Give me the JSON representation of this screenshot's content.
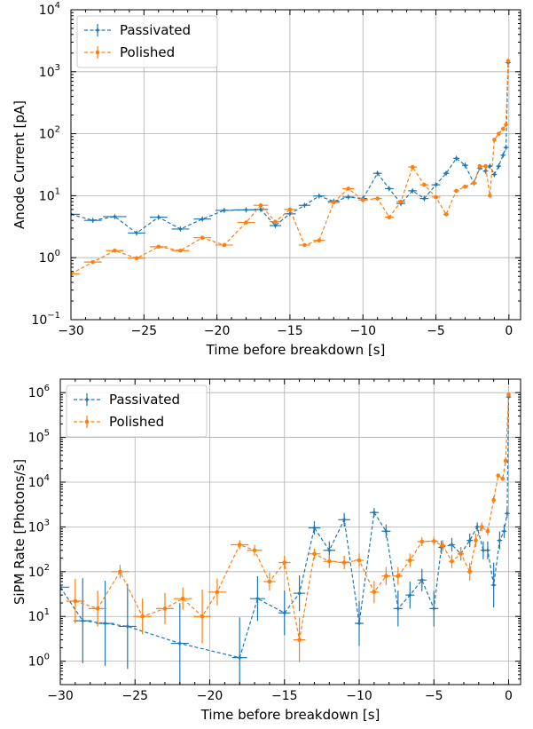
{
  "colors": {
    "passivated": "#1f77b4",
    "polished": "#ff7f0e",
    "grid": "#b0b0b0"
  },
  "chart_data": [
    {
      "type": "line",
      "xlabel": "Time before breakdown [s]",
      "ylabel": "Anode Current [pA]",
      "xlim": [
        -30,
        0.8
      ],
      "yscale": "log",
      "ylim": [
        0.1,
        10000
      ],
      "grid": true,
      "legend_position": "top-left",
      "x_ticks": [
        -30,
        -25,
        -20,
        -15,
        -10,
        -5,
        0
      ],
      "x_tick_labels": [
        "−30",
        "−25",
        "−20",
        "−15",
        "−10",
        "−5",
        "0"
      ],
      "y_ticks": [
        0.1,
        1,
        10,
        100,
        1000,
        10000
      ],
      "y_tick_labels": [
        [
          "10",
          "−1"
        ],
        [
          "10",
          "0"
        ],
        [
          "10",
          "1"
        ],
        [
          "10",
          "2"
        ],
        [
          "10",
          "3"
        ],
        [
          "10",
          "4"
        ]
      ],
      "series": [
        {
          "name": "Passivated",
          "color": "#1f77b4",
          "marker": "star",
          "points": [
            [
              -30,
              5.0,
              0.6,
              0
            ],
            [
              -28.5,
              4.0,
              0.6,
              0
            ],
            [
              -27,
              4.6,
              0.8,
              0
            ],
            [
              -25.5,
              2.5,
              0.6,
              0
            ],
            [
              -24,
              4.5,
              0.6,
              0
            ],
            [
              -22.5,
              2.9,
              0.6,
              0
            ],
            [
              -21,
              4.2,
              0.6,
              0
            ],
            [
              -19.5,
              5.8,
              0.6,
              0
            ],
            [
              -18,
              5.9,
              0.8,
              0
            ],
            [
              -17,
              6.0,
              0.5,
              0
            ],
            [
              -16,
              3.3,
              0.4,
              0
            ],
            [
              -15,
              5.1,
              0.4,
              0
            ],
            [
              -14,
              7.0,
              0.4,
              0
            ],
            [
              -13,
              9.9,
              0.4,
              0
            ],
            [
              -12,
              8.1,
              0.4,
              0
            ],
            [
              -11,
              9.5,
              0.4,
              0
            ],
            [
              -10,
              9.0,
              0.3,
              0
            ],
            [
              -9,
              23.0,
              0.3,
              0
            ],
            [
              -8.2,
              13.0,
              0.3,
              0
            ],
            [
              -7.4,
              7.5,
              0.3,
              0
            ],
            [
              -6.6,
              12.0,
              0.3,
              0
            ],
            [
              -5.8,
              9.0,
              0.3,
              0
            ],
            [
              -5.0,
              15.0,
              0.3,
              0
            ],
            [
              -4.3,
              23.0,
              0.2,
              0
            ],
            [
              -3.6,
              40.0,
              0.2,
              0
            ],
            [
              -3.0,
              31.0,
              0.2,
              0
            ],
            [
              -2.4,
              16.0,
              0.2,
              0
            ],
            [
              -2.0,
              28.0,
              0.1,
              0
            ],
            [
              -1.6,
              25.0,
              0.1,
              0
            ],
            [
              -1.3,
              30.0,
              0.1,
              0
            ],
            [
              -1.0,
              22.0,
              0.1,
              0
            ],
            [
              -0.7,
              30.0,
              0.1,
              0
            ],
            [
              -0.4,
              45.0,
              0.05,
              0
            ],
            [
              -0.2,
              60.0,
              0.05,
              0
            ],
            [
              -0.05,
              1400.0,
              0.03,
              0
            ]
          ]
        },
        {
          "name": "Polished",
          "color": "#ff7f0e",
          "marker": "circle",
          "points": [
            [
              -30,
              0.55,
              0.6,
              0
            ],
            [
              -28.5,
              0.85,
              0.6,
              0
            ],
            [
              -27,
              1.3,
              0.6,
              0
            ],
            [
              -25.5,
              0.98,
              0.6,
              0
            ],
            [
              -24,
              1.5,
              0.6,
              0
            ],
            [
              -22.5,
              1.3,
              0.6,
              0
            ],
            [
              -21,
              2.1,
              0.6,
              0
            ],
            [
              -19.5,
              1.6,
              0.6,
              0
            ],
            [
              -18,
              3.7,
              0.6,
              0
            ],
            [
              -17,
              7.0,
              0.5,
              0
            ],
            [
              -16,
              3.8,
              0.4,
              0
            ],
            [
              -15,
              6.0,
              0.4,
              0
            ],
            [
              -14,
              1.6,
              0.4,
              0
            ],
            [
              -13,
              1.9,
              0.4,
              0
            ],
            [
              -12,
              7.8,
              0.4,
              0
            ],
            [
              -11,
              13.0,
              0.4,
              0
            ],
            [
              -10,
              8.5,
              0.3,
              0
            ],
            [
              -9,
              9.0,
              0.3,
              0
            ],
            [
              -8.2,
              4.5,
              0.3,
              0
            ],
            [
              -7.4,
              8.0,
              0.3,
              0
            ],
            [
              -6.6,
              29.0,
              0.3,
              0
            ],
            [
              -5.8,
              15.0,
              0.3,
              0
            ],
            [
              -5.0,
              9.5,
              0.3,
              0
            ],
            [
              -4.3,
              5.0,
              0.2,
              0
            ],
            [
              -3.6,
              12.0,
              0.2,
              0
            ],
            [
              -3.0,
              14.0,
              0.2,
              0
            ],
            [
              -2.4,
              16.0,
              0.2,
              0
            ],
            [
              -2.0,
              30.0,
              0.1,
              0
            ],
            [
              -1.6,
              30.0,
              0.1,
              0
            ],
            [
              -1.3,
              10.0,
              0.1,
              0
            ],
            [
              -1.0,
              80.0,
              0.1,
              0
            ],
            [
              -0.7,
              100.0,
              0.1,
              0
            ],
            [
              -0.4,
              120.0,
              0.05,
              0
            ],
            [
              -0.2,
              140.0,
              0.05,
              0
            ],
            [
              -0.05,
              1500.0,
              0.03,
              0
            ]
          ]
        }
      ]
    },
    {
      "type": "line",
      "xlabel": "Time before breakdown [s]",
      "ylabel": "SiPM Rate [Photons/s]",
      "xlim": [
        -30,
        0.8
      ],
      "yscale": "log",
      "ylim": [
        0.3,
        2000000
      ],
      "grid": true,
      "legend_position": "top-left",
      "x_ticks": [
        -30,
        -25,
        -20,
        -15,
        -10,
        -5,
        0
      ],
      "x_tick_labels": [
        "−30",
        "−25",
        "−20",
        "−15",
        "−10",
        "−5",
        "0"
      ],
      "y_ticks": [
        1,
        10,
        100,
        1000,
        10000,
        100000,
        1000000
      ],
      "y_tick_labels": [
        [
          "10",
          "0"
        ],
        [
          "10",
          "1"
        ],
        [
          "10",
          "2"
        ],
        [
          "10",
          "3"
        ],
        [
          "10",
          "4"
        ],
        [
          "10",
          "5"
        ],
        [
          "10",
          "6"
        ]
      ],
      "series": [
        {
          "name": "Passivated",
          "color": "#1f77b4",
          "marker": "star",
          "points": [
            [
              -30,
              45,
              0.6,
              0.7
            ],
            [
              -28.5,
              8,
              0.6,
              0.95
            ],
            [
              -27,
              7,
              0.6,
              0.95
            ],
            [
              -25.5,
              6,
              0.6,
              0.95
            ],
            [
              -22,
              2.5,
              0.6,
              0.9
            ],
            [
              -18,
              1.2,
              0.5,
              0.9
            ],
            [
              -16.8,
              25,
              0.5,
              0.5
            ],
            [
              -15,
              12,
              0.4,
              0.5
            ],
            [
              -14,
              33,
              0.4,
              0.4
            ],
            [
              -13,
              950,
              0.4,
              0.15
            ],
            [
              -12,
              300,
              0.4,
              0.2
            ],
            [
              -11,
              1450,
              0.4,
              0.15
            ],
            [
              -10,
              7,
              0.3,
              0.5
            ],
            [
              -9,
              2100,
              0.3,
              0.1
            ],
            [
              -8.2,
              800,
              0.3,
              0.15
            ],
            [
              -7.4,
              15,
              0.3,
              0.4
            ],
            [
              -6.6,
              30,
              0.3,
              0.3
            ],
            [
              -5.8,
              65,
              0.3,
              0.25
            ],
            [
              -5.0,
              15,
              0.3,
              0.4
            ],
            [
              -4.5,
              350,
              0.2,
              0.15
            ],
            [
              -3.8,
              400,
              0.2,
              0.15
            ],
            [
              -3.2,
              250,
              0.2,
              0.15
            ],
            [
              -2.6,
              500,
              0.2,
              0.15
            ],
            [
              -2.1,
              1000,
              0.1,
              0.1
            ],
            [
              -1.7,
              300,
              0.1,
              0.2
            ],
            [
              -1.4,
              300,
              0.1,
              0.2
            ],
            [
              -1.0,
              50,
              0.1,
              0.5
            ],
            [
              -0.6,
              500,
              0.1,
              0.2
            ],
            [
              -0.3,
              800,
              0.05,
              0.15
            ],
            [
              -0.1,
              2000,
              0.05,
              0.1
            ],
            [
              0.0,
              800000,
              0.03,
              0.02
            ]
          ]
        },
        {
          "name": "Polished",
          "color": "#ff7f0e",
          "marker": "circle",
          "points": [
            [
              -29,
              22,
              0.6,
              0.5
            ],
            [
              -27.5,
              15,
              0.6,
              0.4
            ],
            [
              -26,
              100,
              0.6,
              0.15
            ],
            [
              -24.5,
              10,
              0.6,
              0.4
            ],
            [
              -23,
              15,
              0.6,
              0.35
            ],
            [
              -21.8,
              25,
              0.6,
              0.25
            ],
            [
              -20.5,
              10,
              0.6,
              0.6
            ],
            [
              -19.5,
              35,
              0.6,
              0.3
            ],
            [
              -18,
              400,
              0.6,
              0.1
            ],
            [
              -17,
              300,
              0.5,
              0.12
            ],
            [
              -16,
              60,
              0.4,
              0.2
            ],
            [
              -15,
              160,
              0.4,
              0.15
            ],
            [
              -14,
              3,
              0.4,
              0.5
            ],
            [
              -13,
              250,
              0.4,
              0.12
            ],
            [
              -12,
              170,
              0.4,
              0.15
            ],
            [
              -11,
              160,
              0.4,
              0.15
            ],
            [
              -10,
              180,
              0.3,
              0.15
            ],
            [
              -9,
              35,
              0.3,
              0.25
            ],
            [
              -8.2,
              80,
              0.3,
              0.2
            ],
            [
              -7.4,
              80,
              0.3,
              0.2
            ],
            [
              -6.6,
              180,
              0.3,
              0.15
            ],
            [
              -5.8,
              470,
              0.3,
              0.1
            ],
            [
              -5.0,
              480,
              0.3,
              0.1
            ],
            [
              -4.4,
              380,
              0.2,
              0.12
            ],
            [
              -3.8,
              170,
              0.2,
              0.15
            ],
            [
              -3.2,
              250,
              0.2,
              0.15
            ],
            [
              -2.6,
              100,
              0.2,
              0.2
            ],
            [
              -2.2,
              500,
              0.1,
              0.15
            ],
            [
              -1.8,
              1000,
              0.1,
              0.1
            ],
            [
              -1.4,
              800,
              0.1,
              0.1
            ],
            [
              -1.0,
              4000,
              0.1,
              0.08
            ],
            [
              -0.7,
              14000,
              0.1,
              0.05
            ],
            [
              -0.4,
              12000,
              0.05,
              0.05
            ],
            [
              -0.2,
              30000,
              0.05,
              0.04
            ],
            [
              0.0,
              900000,
              0.03,
              0.02
            ]
          ]
        }
      ]
    }
  ]
}
